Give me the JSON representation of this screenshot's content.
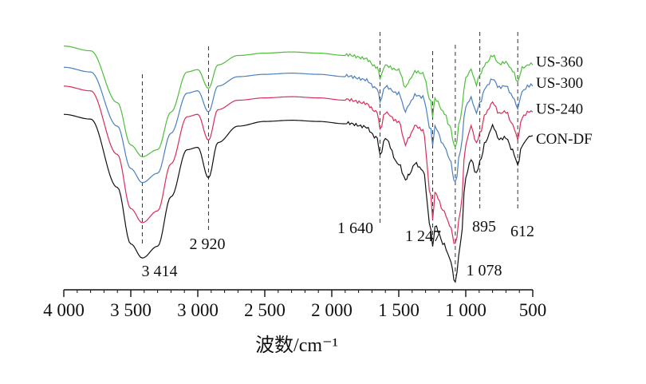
{
  "chart_data": {
    "type": "line",
    "xlabel": "波数/cm⁻¹",
    "ylabel": "",
    "x_reversed": true,
    "xlim": [
      4000,
      500
    ],
    "ticks": [
      {
        "value": 4000,
        "label": "4 000"
      },
      {
        "value": 3500,
        "label": "3 500"
      },
      {
        "value": 3000,
        "label": "3 000"
      },
      {
        "value": 2500,
        "label": "2 500"
      },
      {
        "value": 2000,
        "label": "2 000"
      },
      {
        "value": 1500,
        "label": "1 500"
      },
      {
        "value": 1000,
        "label": "1 000"
      },
      {
        "value": 500,
        "label": "500"
      }
    ],
    "reference_lines": [
      {
        "x": 3414,
        "label": "3 414"
      },
      {
        "x": 2920,
        "label": "2 920"
      },
      {
        "x": 1640,
        "label": "1 640"
      },
      {
        "x": 1247,
        "label": "1 247"
      },
      {
        "x": 1078,
        "label": "1 078"
      },
      {
        "x": 895,
        "label": "895"
      },
      {
        "x": 612,
        "label": "612"
      }
    ],
    "series": [
      {
        "name": "US-360",
        "color": "#4dbf3a",
        "points": [
          [
            4000,
            0.94
          ],
          [
            3800,
            0.92
          ],
          [
            3600,
            0.7
          ],
          [
            3500,
            0.52
          ],
          [
            3414,
            0.47
          ],
          [
            3300,
            0.5
          ],
          [
            3200,
            0.66
          ],
          [
            3080,
            0.83
          ],
          [
            3000,
            0.84
          ],
          [
            2920,
            0.76
          ],
          [
            2850,
            0.86
          ],
          [
            2700,
            0.9
          ],
          [
            2500,
            0.91
          ],
          [
            2300,
            0.915
          ],
          [
            2100,
            0.91
          ],
          [
            1900,
            0.9
          ],
          [
            1750,
            0.89
          ],
          [
            1660,
            0.85
          ],
          [
            1640,
            0.8
          ],
          [
            1600,
            0.86
          ],
          [
            1500,
            0.84
          ],
          [
            1450,
            0.76
          ],
          [
            1420,
            0.8
          ],
          [
            1380,
            0.83
          ],
          [
            1320,
            0.82
          ],
          [
            1260,
            0.7
          ],
          [
            1247,
            0.64
          ],
          [
            1230,
            0.72
          ],
          [
            1160,
            0.66
          ],
          [
            1120,
            0.6
          ],
          [
            1078,
            0.51
          ],
          [
            1040,
            0.64
          ],
          [
            1000,
            0.8
          ],
          [
            960,
            0.84
          ],
          [
            920,
            0.78
          ],
          [
            895,
            0.82
          ],
          [
            850,
            0.87
          ],
          [
            800,
            0.9
          ],
          [
            750,
            0.86
          ],
          [
            700,
            0.87
          ],
          [
            650,
            0.84
          ],
          [
            612,
            0.79
          ],
          [
            580,
            0.85
          ],
          [
            540,
            0.86
          ],
          [
            500,
            0.86
          ]
        ]
      },
      {
        "name": "US-300",
        "color": "#4a7fc1",
        "points": [
          [
            4000,
            0.85
          ],
          [
            3800,
            0.83
          ],
          [
            3600,
            0.6
          ],
          [
            3500,
            0.42
          ],
          [
            3414,
            0.36
          ],
          [
            3300,
            0.4
          ],
          [
            3200,
            0.57
          ],
          [
            3080,
            0.74
          ],
          [
            3000,
            0.75
          ],
          [
            2920,
            0.66
          ],
          [
            2850,
            0.77
          ],
          [
            2700,
            0.81
          ],
          [
            2500,
            0.82
          ],
          [
            2300,
            0.825
          ],
          [
            2100,
            0.82
          ],
          [
            1900,
            0.81
          ],
          [
            1750,
            0.8
          ],
          [
            1660,
            0.76
          ],
          [
            1640,
            0.7
          ],
          [
            1600,
            0.77
          ],
          [
            1500,
            0.74
          ],
          [
            1450,
            0.66
          ],
          [
            1420,
            0.7
          ],
          [
            1380,
            0.73
          ],
          [
            1320,
            0.72
          ],
          [
            1260,
            0.58
          ],
          [
            1247,
            0.52
          ],
          [
            1230,
            0.6
          ],
          [
            1160,
            0.52
          ],
          [
            1120,
            0.46
          ],
          [
            1078,
            0.36
          ],
          [
            1040,
            0.5
          ],
          [
            1000,
            0.68
          ],
          [
            960,
            0.72
          ],
          [
            920,
            0.66
          ],
          [
            895,
            0.7
          ],
          [
            850,
            0.77
          ],
          [
            800,
            0.8
          ],
          [
            750,
            0.76
          ],
          [
            700,
            0.77
          ],
          [
            650,
            0.73
          ],
          [
            612,
            0.68
          ],
          [
            580,
            0.75
          ],
          [
            540,
            0.77
          ],
          [
            500,
            0.77
          ]
        ]
      },
      {
        "name": "US-240",
        "color": "#d92d5a",
        "points": [
          [
            4000,
            0.77
          ],
          [
            3800,
            0.75
          ],
          [
            3600,
            0.48
          ],
          [
            3500,
            0.25
          ],
          [
            3414,
            0.19
          ],
          [
            3300,
            0.24
          ],
          [
            3200,
            0.44
          ],
          [
            3080,
            0.64
          ],
          [
            3000,
            0.65
          ],
          [
            2920,
            0.54
          ],
          [
            2850,
            0.67
          ],
          [
            2700,
            0.71
          ],
          [
            2500,
            0.72
          ],
          [
            2300,
            0.725
          ],
          [
            2100,
            0.72
          ],
          [
            1900,
            0.71
          ],
          [
            1750,
            0.7
          ],
          [
            1660,
            0.66
          ],
          [
            1640,
            0.58
          ],
          [
            1600,
            0.66
          ],
          [
            1500,
            0.62
          ],
          [
            1450,
            0.52
          ],
          [
            1420,
            0.56
          ],
          [
            1380,
            0.6
          ],
          [
            1320,
            0.58
          ],
          [
            1260,
            0.3
          ],
          [
            1247,
            0.2
          ],
          [
            1230,
            0.32
          ],
          [
            1160,
            0.24
          ],
          [
            1120,
            0.18
          ],
          [
            1078,
            0.1
          ],
          [
            1040,
            0.24
          ],
          [
            1000,
            0.52
          ],
          [
            960,
            0.6
          ],
          [
            920,
            0.53
          ],
          [
            895,
            0.57
          ],
          [
            850,
            0.66
          ],
          [
            800,
            0.7
          ],
          [
            750,
            0.65
          ],
          [
            700,
            0.66
          ],
          [
            650,
            0.61
          ],
          [
            612,
            0.55
          ],
          [
            580,
            0.64
          ],
          [
            540,
            0.66
          ],
          [
            500,
            0.66
          ]
        ]
      },
      {
        "name": "CON-DF",
        "color": "#111111",
        "points": [
          [
            4000,
            0.65
          ],
          [
            3800,
            0.63
          ],
          [
            3600,
            0.34
          ],
          [
            3500,
            0.1
          ],
          [
            3414,
            0.04
          ],
          [
            3300,
            0.09
          ],
          [
            3200,
            0.3
          ],
          [
            3080,
            0.5
          ],
          [
            3000,
            0.51
          ],
          [
            2920,
            0.38
          ],
          [
            2850,
            0.53
          ],
          [
            2700,
            0.6
          ],
          [
            2500,
            0.62
          ],
          [
            2300,
            0.625
          ],
          [
            2100,
            0.62
          ],
          [
            1900,
            0.61
          ],
          [
            1750,
            0.6
          ],
          [
            1660,
            0.55
          ],
          [
            1640,
            0.47
          ],
          [
            1600,
            0.55
          ],
          [
            1500,
            0.44
          ],
          [
            1450,
            0.37
          ],
          [
            1420,
            0.4
          ],
          [
            1380,
            0.44
          ],
          [
            1320,
            0.41
          ],
          [
            1260,
            0.16
          ],
          [
            1247,
            0.08
          ],
          [
            1230,
            0.18
          ],
          [
            1160,
            0.1
          ],
          [
            1120,
            0.04
          ],
          [
            1078,
            -0.06
          ],
          [
            1040,
            0.1
          ],
          [
            1000,
            0.38
          ],
          [
            960,
            0.46
          ],
          [
            920,
            0.4
          ],
          [
            895,
            0.45
          ],
          [
            850,
            0.54
          ],
          [
            800,
            0.6
          ],
          [
            750,
            0.54
          ],
          [
            700,
            0.55
          ],
          [
            650,
            0.5
          ],
          [
            612,
            0.44
          ],
          [
            580,
            0.52
          ],
          [
            540,
            0.55
          ],
          [
            500,
            0.56
          ]
        ]
      }
    ]
  }
}
